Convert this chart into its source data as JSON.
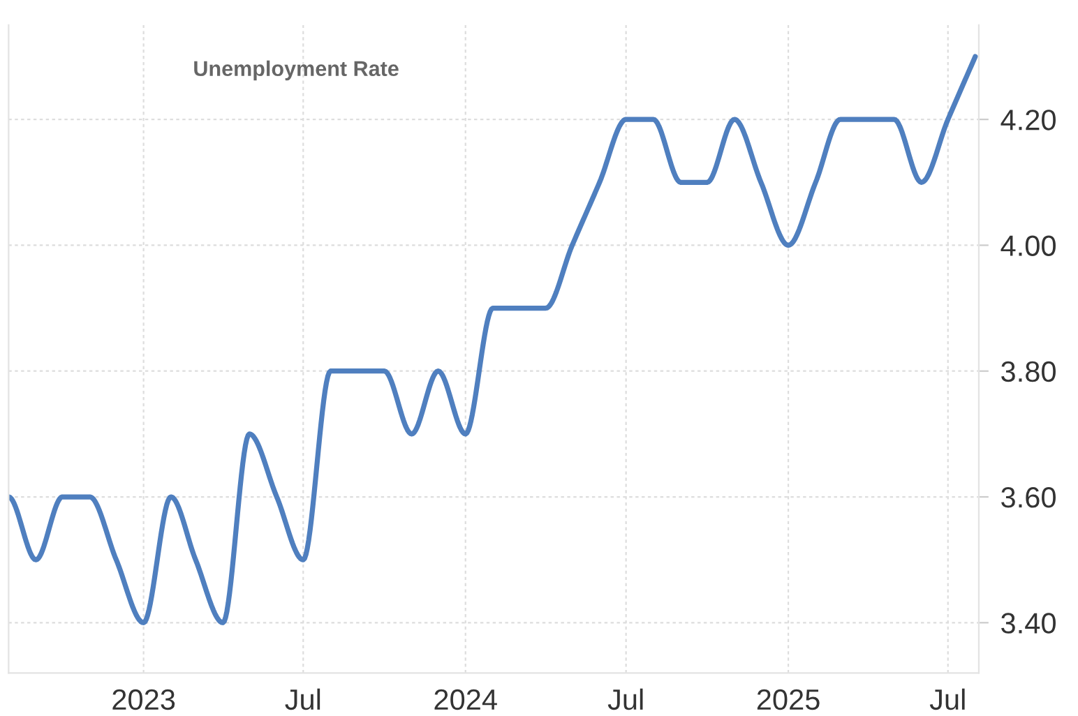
{
  "chart_data": {
    "type": "line",
    "title": "Unemployment Rate",
    "x": [
      "2022-08",
      "2022-09",
      "2022-10",
      "2022-11",
      "2022-12",
      "2023-01",
      "2023-02",
      "2023-03",
      "2023-04",
      "2023-05",
      "2023-06",
      "2023-07",
      "2023-08",
      "2023-09",
      "2023-10",
      "2023-11",
      "2023-12",
      "2024-01",
      "2024-02",
      "2024-03",
      "2024-04",
      "2024-05",
      "2024-06",
      "2024-07",
      "2024-08",
      "2024-09",
      "2024-10",
      "2024-11",
      "2024-12",
      "2025-01",
      "2025-02",
      "2025-03",
      "2025-04",
      "2025-05",
      "2025-06",
      "2025-07",
      "2025-08"
    ],
    "series": [
      {
        "color": "#4f7fbf",
        "values": [
          3.6,
          3.5,
          3.6,
          3.6,
          3.5,
          3.4,
          3.6,
          3.5,
          3.4,
          3.7,
          3.6,
          3.5,
          3.8,
          3.8,
          3.8,
          3.7,
          3.8,
          3.7,
          3.9,
          3.9,
          3.9,
          4.0,
          4.1,
          4.2,
          4.2,
          4.1,
          4.1,
          4.2,
          4.1,
          4.0,
          4.1,
          4.2,
          4.2,
          4.2,
          4.1,
          4.2,
          4.3
        ]
      }
    ],
    "xlim": [
      "2022-08-01",
      "2025-08-05"
    ],
    "xticks": [
      {
        "value": "2023-01",
        "label": "2023"
      },
      {
        "value": "2023-07",
        "label": "Jul"
      },
      {
        "value": "2024-01",
        "label": "2024"
      },
      {
        "value": "2024-07",
        "label": "Jul"
      },
      {
        "value": "2025-01",
        "label": "2025"
      },
      {
        "value": "2025-07",
        "label": "Jul"
      }
    ],
    "ylim": [
      3.32,
      4.35
    ],
    "yticks": [
      {
        "value": 3.4,
        "label": "3.40"
      },
      {
        "value": 3.6,
        "label": "3.60"
      },
      {
        "value": 3.8,
        "label": "3.80"
      },
      {
        "value": 4.0,
        "label": "4.00"
      },
      {
        "value": 4.2,
        "label": "4.20"
      }
    ],
    "grid": true,
    "marker": "none",
    "line_style": "solid"
  }
}
